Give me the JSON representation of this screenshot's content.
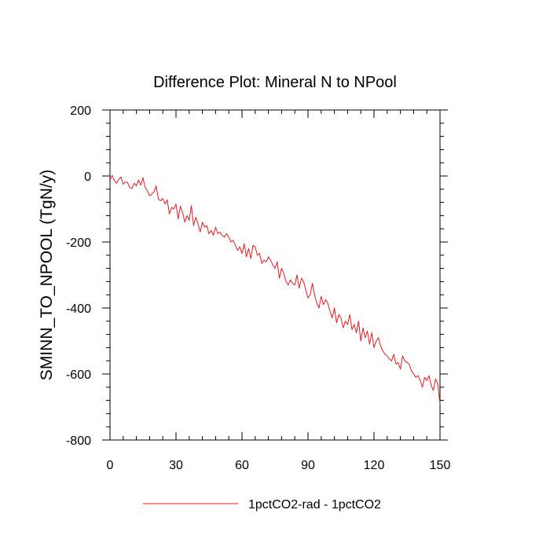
{
  "chart_data": {
    "type": "line",
    "title": "Difference Plot: Mineral N to NPool",
    "xlabel": "",
    "ylabel": "SMINN_TO_NPOOL  (TgN/y)",
    "xlim": [
      0,
      150
    ],
    "ylim": [
      -800,
      200
    ],
    "xticks": [
      0,
      30,
      60,
      90,
      120,
      150
    ],
    "yticks": [
      200,
      0,
      -200,
      -400,
      -600,
      -800
    ],
    "xtick_labels": [
      "0",
      "30",
      "60",
      "90",
      "120",
      "150"
    ],
    "ytick_labels": [
      "200",
      "0",
      "-200",
      "-400",
      "-600",
      "-800"
    ],
    "grid": false,
    "legend_position": "bottom-center",
    "series": [
      {
        "name": "1pctCO2-rad - 1pctCO2",
        "color": "#e8191c",
        "x": [
          0,
          1,
          2,
          3,
          4,
          5,
          6,
          7,
          8,
          9,
          10,
          11,
          12,
          13,
          14,
          15,
          16,
          17,
          18,
          19,
          20,
          21,
          22,
          23,
          24,
          25,
          26,
          27,
          28,
          29,
          30,
          31,
          32,
          33,
          34,
          35,
          36,
          37,
          38,
          39,
          40,
          41,
          42,
          43,
          44,
          45,
          46,
          47,
          48,
          49,
          50,
          51,
          52,
          53,
          54,
          55,
          56,
          57,
          58,
          59,
          60,
          61,
          62,
          63,
          64,
          65,
          66,
          67,
          68,
          69,
          70,
          71,
          72,
          73,
          74,
          75,
          76,
          77,
          78,
          79,
          80,
          81,
          82,
          83,
          84,
          85,
          86,
          87,
          88,
          89,
          90,
          91,
          92,
          93,
          94,
          95,
          96,
          97,
          98,
          99,
          100,
          101,
          102,
          103,
          104,
          105,
          106,
          107,
          108,
          109,
          110,
          111,
          112,
          113,
          114,
          115,
          116,
          117,
          118,
          119,
          120,
          121,
          122,
          123,
          124,
          125,
          126,
          127,
          128,
          129,
          130,
          131,
          132,
          133,
          134,
          135,
          136,
          137,
          138,
          139,
          140,
          141,
          142,
          143,
          144,
          145,
          146,
          147,
          148,
          149,
          150
        ],
        "values": [
          -12,
          2,
          -15,
          -22,
          -10,
          -3,
          -25,
          -18,
          -20,
          -35,
          -38,
          -22,
          -30,
          -12,
          -28,
          -5,
          -35,
          -45,
          -60,
          -55,
          -48,
          -30,
          -70,
          -75,
          -68,
          -85,
          -72,
          -115,
          -95,
          -100,
          -85,
          -130,
          -92,
          -110,
          -140,
          -120,
          -135,
          -90,
          -150,
          -125,
          -145,
          -170,
          -140,
          -155,
          -150,
          -175,
          -165,
          -180,
          -155,
          -175,
          -170,
          -180,
          -185,
          -175,
          -185,
          -200,
          -195,
          -210,
          -225,
          -215,
          -235,
          -205,
          -245,
          -220,
          -250,
          -210,
          -215,
          -240,
          -235,
          -265,
          -255,
          -260,
          -245,
          -255,
          -270,
          -280,
          -260,
          -310,
          -280,
          -295,
          -320,
          -330,
          -315,
          -325,
          -330,
          -300,
          -340,
          -310,
          -320,
          -345,
          -370,
          -360,
          -325,
          -360,
          -385,
          -400,
          -365,
          -390,
          -375,
          -385,
          -410,
          -430,
          -400,
          -445,
          -420,
          -430,
          -460,
          -440,
          -450,
          -420,
          -465,
          -450,
          -475,
          -440,
          -500,
          -460,
          -490,
          -470,
          -510,
          -475,
          -520,
          -500,
          -490,
          -515,
          -530,
          -540,
          -545,
          -555,
          -560,
          -540,
          -570,
          -565,
          -585,
          -545,
          -560,
          -565,
          -570,
          -590,
          -600,
          -610,
          -605,
          -620,
          -640,
          -610,
          -620,
          -605,
          -635,
          -650,
          -615,
          -630,
          -690
        ]
      }
    ]
  }
}
